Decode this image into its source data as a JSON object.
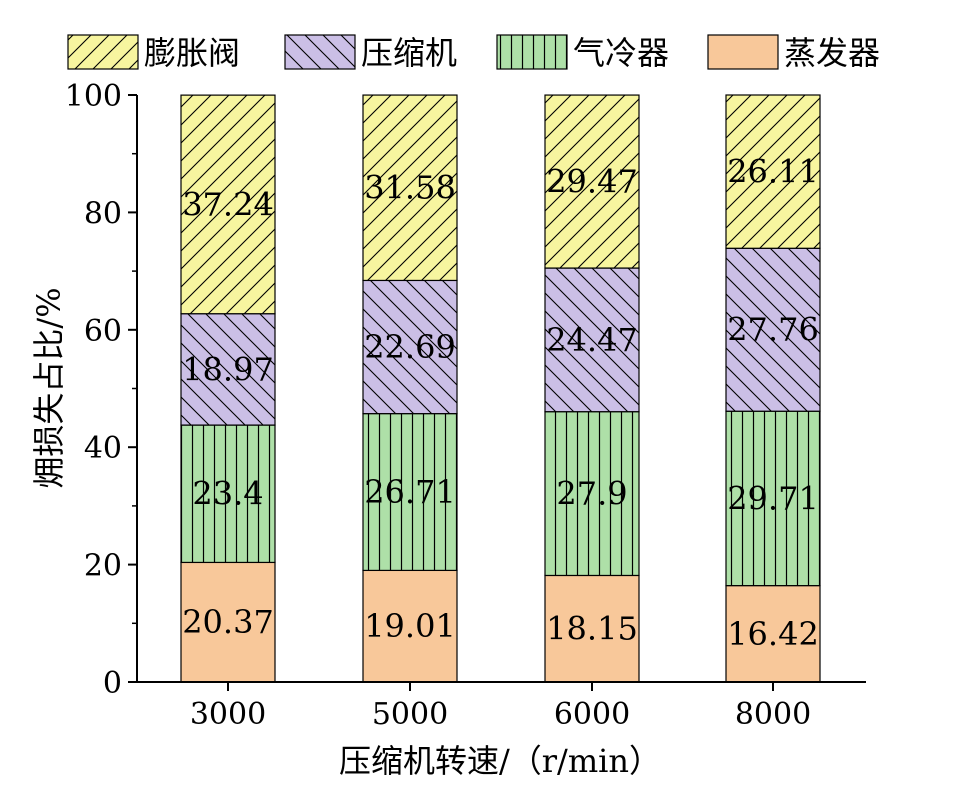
{
  "chart_data": {
    "type": "bar",
    "stacked": true,
    "categories": [
      "3000",
      "5000",
      "6000",
      "8000"
    ],
    "series": [
      {
        "name": "蒸发器",
        "values": [
          20.37,
          19.01,
          18.15,
          16.42
        ],
        "color": "#f8c89a",
        "pattern": "none"
      },
      {
        "name": "气冷器",
        "values": [
          23.4,
          26.71,
          27.9,
          29.71
        ],
        "color": "#aee0a8",
        "pattern": "vertical"
      },
      {
        "name": "压缩机",
        "values": [
          18.97,
          22.69,
          24.47,
          27.76
        ],
        "color": "#cbbfe6",
        "pattern": "backslash"
      },
      {
        "name": "膨胀阀",
        "values": [
          37.24,
          31.58,
          29.47,
          26.11
        ],
        "color": "#f7f59f",
        "pattern": "slash"
      }
    ],
    "legend_order": [
      "膨胀阀",
      "压缩机",
      "气冷器",
      "蒸发器"
    ],
    "xlabel": "压缩机转速/（r/min）",
    "ylabel": "㶲损失占比/%",
    "ylim": [
      0,
      100
    ],
    "yticks": [
      "0",
      "20",
      "40",
      "60",
      "80",
      "100"
    ],
    "grid": false,
    "legend_position": "top"
  }
}
